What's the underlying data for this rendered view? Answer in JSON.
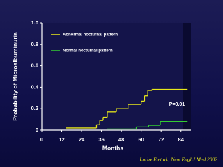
{
  "chart_data": {
    "type": "step",
    "y_label": "Probability of Microalbuminuria",
    "x_label": "Months",
    "annotation": "P=0.01",
    "citation": "Lurbe E et al., New Engl J Med 2002",
    "xlim": [
      0,
      90
    ],
    "xticks": [
      0,
      12,
      24,
      36,
      48,
      60,
      72,
      84
    ],
    "ylim": [
      0,
      1
    ],
    "yticks": [
      0,
      0.2,
      0.4,
      0.6,
      0.8,
      {
        "value": 1,
        "label": "1.0"
      }
    ],
    "series": [
      {
        "name": "Abnormal nocturnal pattern",
        "color": "#e8e81a",
        "x": [
          14.5,
          33,
          35,
          37,
          39.5,
          45,
          52,
          60,
          62,
          64,
          66.5,
          88
        ],
        "values": [
          0.02,
          0.05,
          0.09,
          0.12,
          0.17,
          0.2,
          0.24,
          0.27,
          0.32,
          0.37,
          0.38,
          0.38
        ]
      },
      {
        "name": "Normal nocturnal pattern",
        "color": "#33cc33",
        "x": [
          39.5,
          57,
          64.5,
          71.5,
          88
        ],
        "values": [
          0.01,
          0.03,
          0.045,
          0.08,
          0.08
        ]
      }
    ]
  }
}
